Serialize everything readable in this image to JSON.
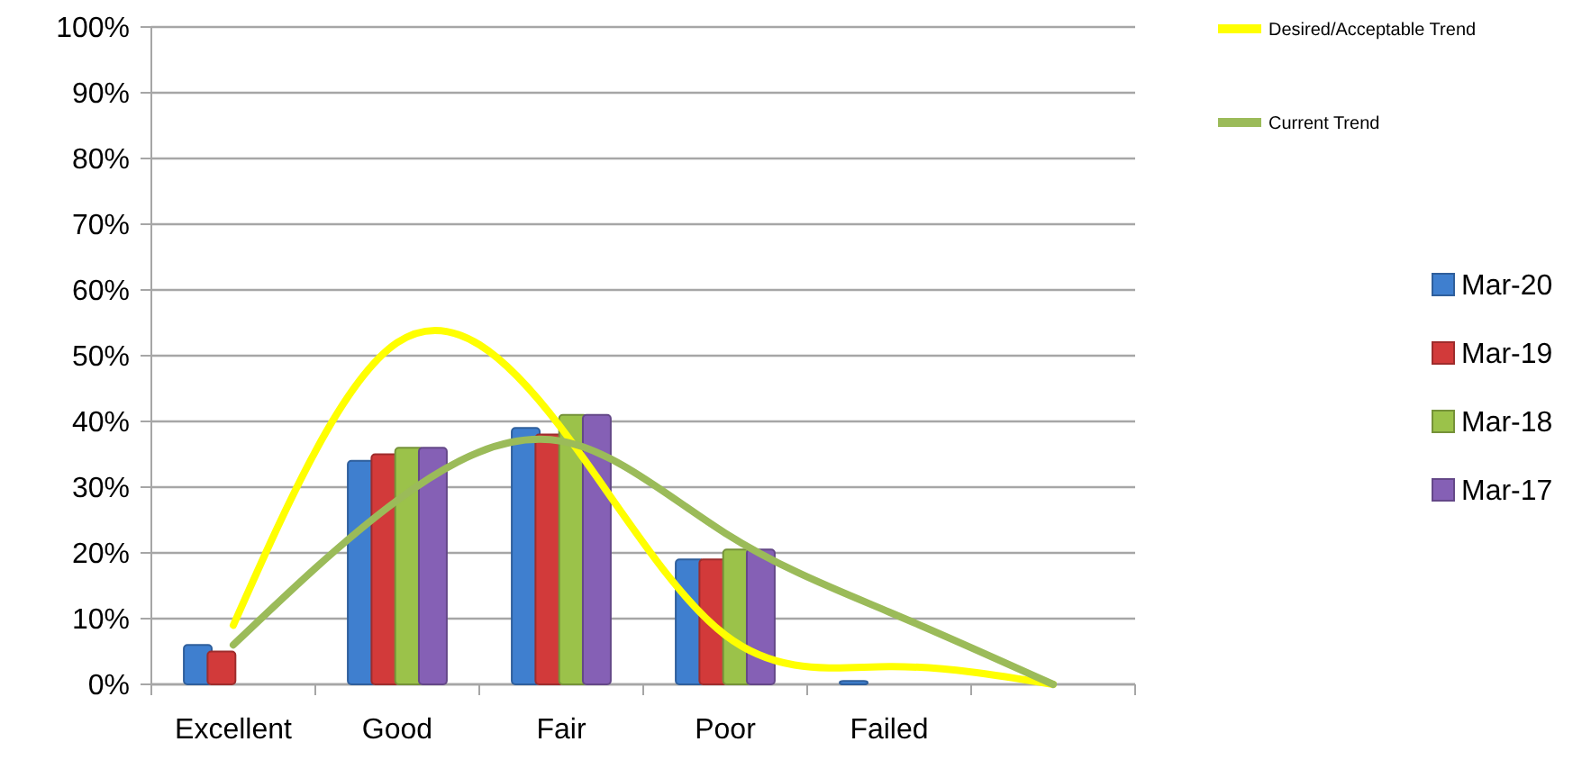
{
  "chart_data": {
    "type": "bar",
    "categories": [
      "Excellent",
      "Good",
      "Fair",
      "Poor",
      "Failed",
      null
    ],
    "series": [
      {
        "name": "Mar-20",
        "color": "#3f7fcf",
        "values": [
          6,
          34,
          39,
          19,
          0.5,
          null
        ]
      },
      {
        "name": "Mar-19",
        "color": "#d23a3a",
        "values": [
          5,
          35,
          38,
          19,
          0,
          null
        ]
      },
      {
        "name": "Mar-18",
        "color": "#9bc24a",
        "values": [
          null,
          36,
          41,
          20.5,
          0,
          null
        ]
      },
      {
        "name": "Mar-17",
        "color": "#8560b5",
        "values": [
          null,
          36,
          41,
          20.5,
          0,
          null
        ]
      },
      {
        "name": "Desired/Acceptable Trend",
        "type": "line",
        "color": "#ffff00",
        "values": [
          9,
          52,
          39,
          7.5,
          2.7,
          0
        ]
      },
      {
        "name": "Current Trend",
        "type": "line",
        "color": "#9bbb59",
        "values": [
          6,
          28,
          37,
          23,
          11,
          0
        ]
      }
    ],
    "ylim": [
      0,
      100
    ],
    "yticks": [
      {
        "value": 0,
        "label": "0%"
      },
      {
        "value": 10,
        "label": "10%"
      },
      {
        "value": 20,
        "label": "20%"
      },
      {
        "value": 30,
        "label": "30%"
      },
      {
        "value": 40,
        "label": "40%"
      },
      {
        "value": 50,
        "label": "50%"
      },
      {
        "value": 60,
        "label": "60%"
      },
      {
        "value": 70,
        "label": "70%"
      },
      {
        "value": 80,
        "label": "80%"
      },
      {
        "value": 90,
        "label": "90%"
      },
      {
        "value": 100,
        "label": "100%"
      }
    ],
    "grid": "y",
    "legend": "right",
    "marker": "none"
  }
}
